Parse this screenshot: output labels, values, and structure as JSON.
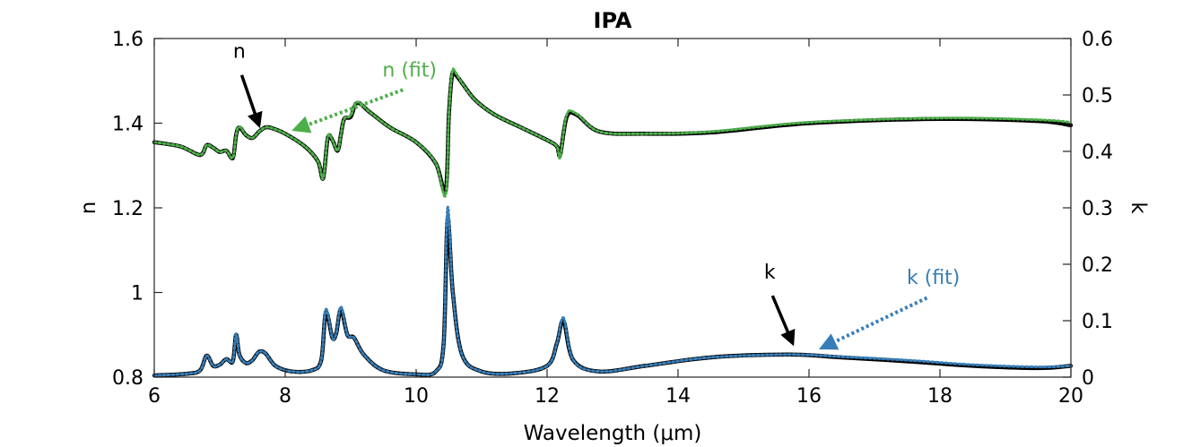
{
  "chart_data": {
    "type": "line",
    "title": "IPA",
    "xlabel": "Wavelength (μm)",
    "ylabel_left": "n",
    "ylabel_right": "k",
    "xlim": [
      6,
      20
    ],
    "ylim_left": [
      0.8,
      1.6
    ],
    "ylim_right": [
      0,
      0.6
    ],
    "x_ticks": [
      6,
      8,
      10,
      12,
      14,
      16,
      18,
      20
    ],
    "x_tick_labels": [
      "6",
      "8",
      "10",
      "12",
      "14",
      "16",
      "18",
      "20"
    ],
    "y_left_ticks": [
      0.8,
      1.0,
      1.2,
      1.4,
      1.6
    ],
    "y_left_tick_labels": [
      "0.8",
      "1",
      "1.2",
      "1.4",
      "1.6"
    ],
    "y_right_ticks": [
      0,
      0.1,
      0.2,
      0.3,
      0.4,
      0.5,
      0.6
    ],
    "y_right_tick_labels": [
      "0",
      "0.1",
      "0.2",
      "0.3",
      "0.4",
      "0.5",
      "0.6"
    ],
    "grid": false,
    "colors": {
      "measured": "#000000",
      "n_fit": "#4daf4a",
      "k_fit": "#377eb8"
    },
    "series": [
      {
        "name": "n",
        "axis": "left",
        "style": "solid",
        "color": "#000000",
        "x": [
          6.0,
          6.4,
          6.7,
          6.8,
          6.9,
          7.0,
          7.1,
          7.2,
          7.25,
          7.3,
          7.4,
          7.5,
          7.6,
          7.7,
          7.8,
          8.0,
          8.3,
          8.5,
          8.58,
          8.65,
          8.72,
          8.8,
          8.85,
          8.9,
          9.0,
          9.1,
          9.3,
          9.6,
          10.0,
          10.3,
          10.45,
          10.5,
          10.55,
          10.6,
          10.7,
          10.9,
          11.2,
          11.6,
          12.0,
          12.15,
          12.2,
          12.3,
          12.45,
          12.8,
          13.5,
          14.5,
          16.0,
          18.0,
          19.5,
          20.0
        ],
        "y": [
          1.355,
          1.345,
          1.325,
          1.348,
          1.342,
          1.332,
          1.335,
          1.318,
          1.372,
          1.39,
          1.372,
          1.365,
          1.38,
          1.39,
          1.388,
          1.375,
          1.345,
          1.31,
          1.27,
          1.365,
          1.36,
          1.335,
          1.372,
          1.41,
          1.415,
          1.448,
          1.425,
          1.39,
          1.355,
          1.305,
          1.24,
          1.42,
          1.515,
          1.515,
          1.495,
          1.455,
          1.42,
          1.39,
          1.36,
          1.345,
          1.325,
          1.415,
          1.42,
          1.38,
          1.375,
          1.378,
          1.4,
          1.41,
          1.405,
          1.395
        ]
      },
      {
        "name": "n (fit)",
        "axis": "left",
        "style": "dotted",
        "color": "#4daf4a",
        "x": [
          6.0,
          6.4,
          6.7,
          6.8,
          6.9,
          7.0,
          7.1,
          7.2,
          7.25,
          7.3,
          7.4,
          7.5,
          7.6,
          7.7,
          7.8,
          8.0,
          8.3,
          8.5,
          8.58,
          8.65,
          8.72,
          8.8,
          8.85,
          8.9,
          9.0,
          9.1,
          9.3,
          9.6,
          10.0,
          10.3,
          10.45,
          10.5,
          10.55,
          10.6,
          10.7,
          10.9,
          11.2,
          11.6,
          12.0,
          12.15,
          12.2,
          12.3,
          12.45,
          12.8,
          13.5,
          14.5,
          16.0,
          18.0,
          19.5,
          20.0
        ],
        "y": [
          1.355,
          1.345,
          1.325,
          1.348,
          1.342,
          1.332,
          1.335,
          1.318,
          1.372,
          1.392,
          1.372,
          1.365,
          1.38,
          1.39,
          1.388,
          1.375,
          1.345,
          1.31,
          1.27,
          1.368,
          1.36,
          1.335,
          1.372,
          1.41,
          1.418,
          1.45,
          1.425,
          1.39,
          1.355,
          1.305,
          1.23,
          1.42,
          1.52,
          1.52,
          1.495,
          1.455,
          1.42,
          1.39,
          1.36,
          1.345,
          1.32,
          1.42,
          1.422,
          1.38,
          1.375,
          1.38,
          1.402,
          1.412,
          1.408,
          1.402
        ]
      },
      {
        "name": "k",
        "axis": "right",
        "style": "solid",
        "color": "#000000",
        "x": [
          6.0,
          6.5,
          6.7,
          6.8,
          6.9,
          7.0,
          7.1,
          7.2,
          7.25,
          7.3,
          7.4,
          7.5,
          7.6,
          7.7,
          7.85,
          8.1,
          8.4,
          8.55,
          8.62,
          8.72,
          8.78,
          8.85,
          8.95,
          9.05,
          9.2,
          9.5,
          10.0,
          10.3,
          10.42,
          10.48,
          10.56,
          10.7,
          11.0,
          11.5,
          12.0,
          12.15,
          12.25,
          12.4,
          12.8,
          13.5,
          14.5,
          15.7,
          16.5,
          17.5,
          18.5,
          19.5,
          20.0
        ],
        "y": [
          0.003,
          0.006,
          0.012,
          0.038,
          0.02,
          0.022,
          0.032,
          0.028,
          0.075,
          0.04,
          0.025,
          0.03,
          0.045,
          0.042,
          0.02,
          0.01,
          0.012,
          0.03,
          0.115,
          0.07,
          0.078,
          0.12,
          0.075,
          0.07,
          0.04,
          0.012,
          0.005,
          0.01,
          0.06,
          0.28,
          0.15,
          0.04,
          0.01,
          0.007,
          0.02,
          0.06,
          0.1,
          0.03,
          0.01,
          0.02,
          0.035,
          0.04,
          0.035,
          0.028,
          0.02,
          0.016,
          0.02
        ]
      },
      {
        "name": "k (fit)",
        "axis": "right",
        "style": "dotted",
        "color": "#377eb8",
        "x": [
          6.0,
          6.5,
          6.7,
          6.8,
          6.9,
          7.0,
          7.1,
          7.2,
          7.25,
          7.3,
          7.4,
          7.5,
          7.6,
          7.7,
          7.85,
          8.1,
          8.4,
          8.55,
          8.62,
          8.72,
          8.78,
          8.85,
          8.95,
          9.05,
          9.2,
          9.5,
          10.0,
          10.3,
          10.42,
          10.48,
          10.56,
          10.7,
          11.0,
          11.5,
          12.0,
          12.15,
          12.25,
          12.4,
          12.8,
          13.5,
          14.5,
          15.7,
          16.5,
          17.5,
          18.5,
          19.5,
          20.0
        ],
        "y": [
          0.003,
          0.006,
          0.012,
          0.038,
          0.02,
          0.022,
          0.032,
          0.028,
          0.077,
          0.04,
          0.025,
          0.03,
          0.045,
          0.042,
          0.02,
          0.01,
          0.012,
          0.03,
          0.12,
          0.07,
          0.078,
          0.125,
          0.075,
          0.07,
          0.04,
          0.012,
          0.005,
          0.01,
          0.06,
          0.3,
          0.15,
          0.04,
          0.01,
          0.007,
          0.02,
          0.06,
          0.105,
          0.03,
          0.01,
          0.02,
          0.035,
          0.04,
          0.036,
          0.03,
          0.022,
          0.018,
          0.02
        ]
      }
    ],
    "annotations": [
      {
        "label": "n",
        "series": "n",
        "color": "#000000",
        "style": "solid",
        "text_x": 7.3,
        "text_left_y": 1.555,
        "x": 7.6,
        "left_y": 1.395
      },
      {
        "label": "n (fit)",
        "series": "n (fit)",
        "color": "#4daf4a",
        "style": "dotted",
        "text_x": 9.9,
        "text_left_y": 1.51,
        "x": 8.15,
        "left_y": 1.385
      },
      {
        "label": "k",
        "series": "k",
        "color": "#000000",
        "style": "solid",
        "text_x": 15.4,
        "text_right_y": 0.175,
        "x": 15.75,
        "right_y": 0.06
      },
      {
        "label": "k (fit)",
        "series": "k (fit)",
        "color": "#377eb8",
        "style": "dotted",
        "text_x": 17.9,
        "text_right_y": 0.165,
        "x": 16.2,
        "right_y": 0.052
      }
    ]
  }
}
